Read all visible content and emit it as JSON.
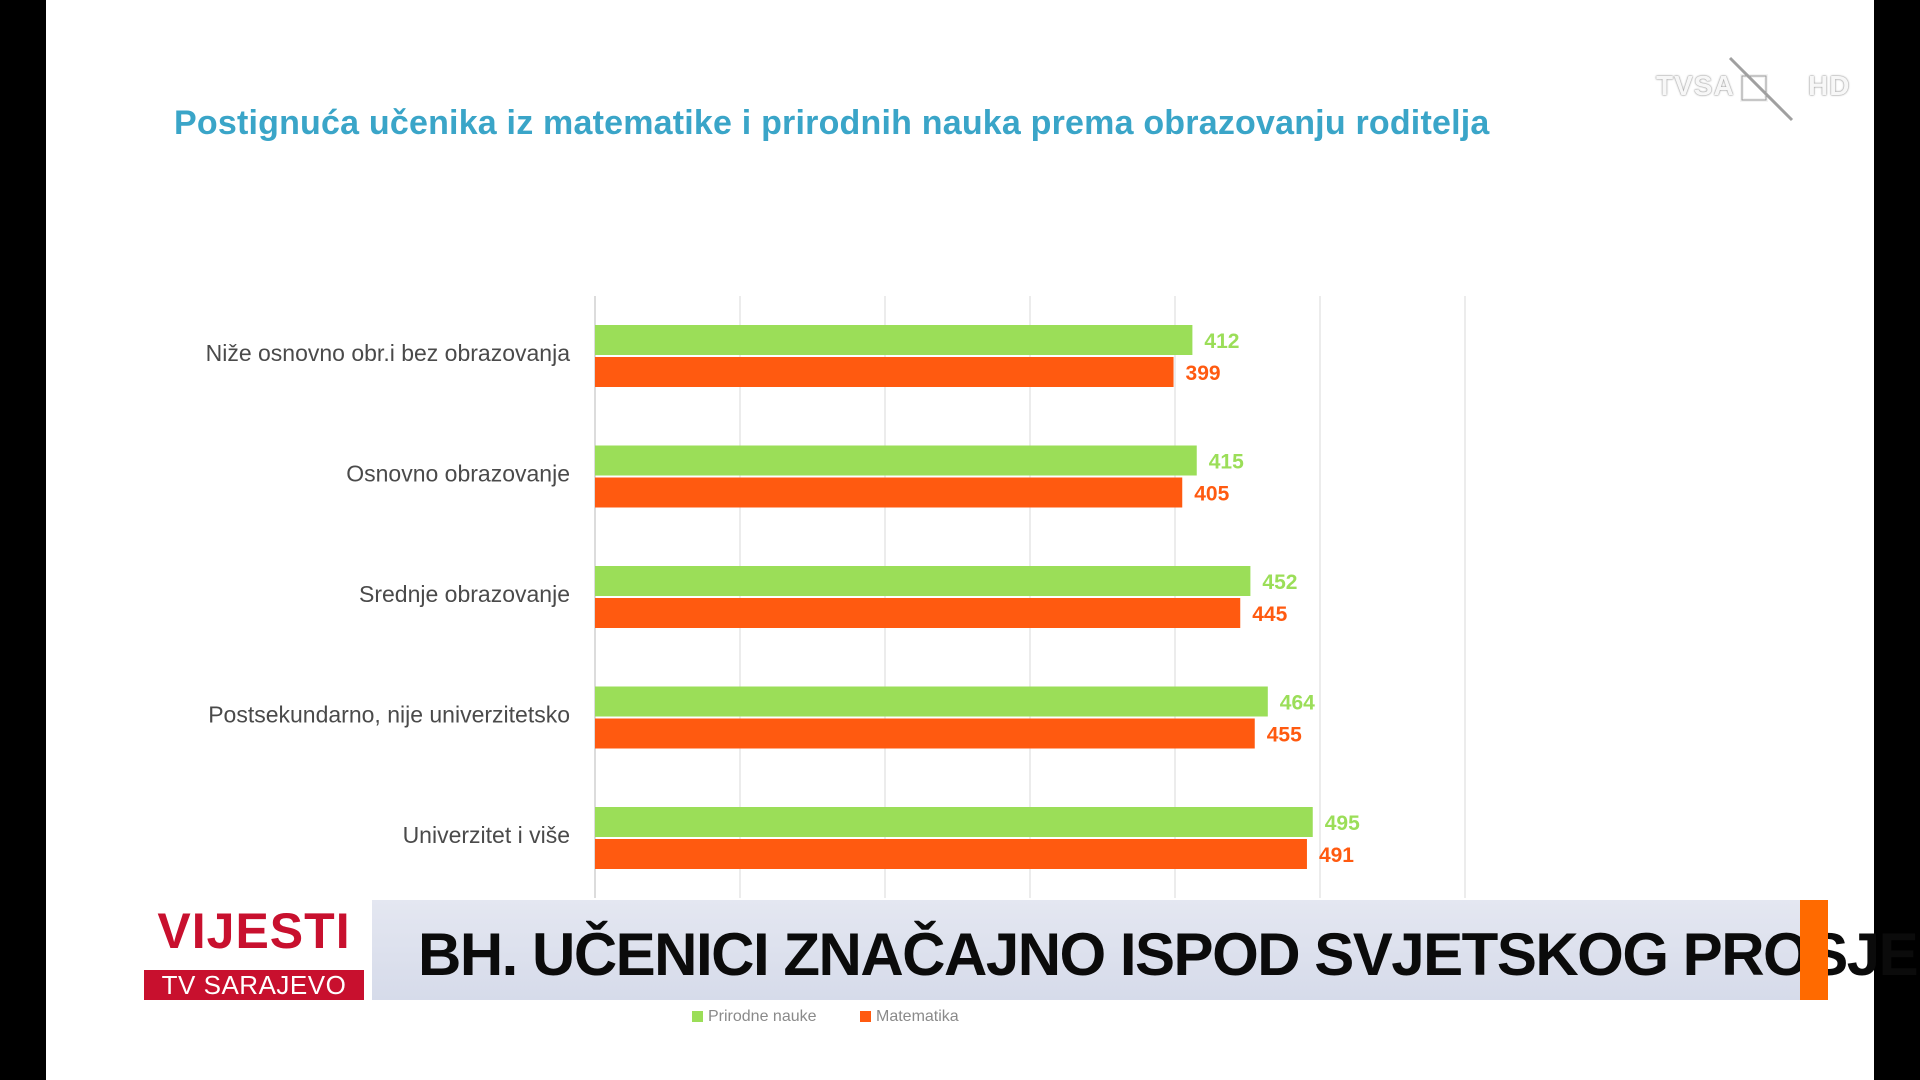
{
  "title": "Postignuća učenika iz matematike i prirodnih nauka prema obrazovanju roditelja",
  "logo": {
    "left_text": "TVSA",
    "right_text": "HD"
  },
  "news": {
    "program": "VIJESTI",
    "channel": "TV SARAJEVO",
    "headline": "BH. UČENICI ZNAČAJNO ISPOD SVJETSKOG PROSJEKA"
  },
  "colors": {
    "science": "#9bde58",
    "math": "#ff5a10",
    "title": "#3aa5c8",
    "accent": "#ff6a00",
    "brand_red": "#c8102e"
  },
  "chart_data": {
    "type": "bar",
    "orientation": "horizontal",
    "categories": [
      "Niže osnovno obr.i bez obrazovanja",
      "Osnovno obrazovanje",
      "Srednje obrazovanje",
      "Postsekundarno, nije univerzitetsko",
      "Univerzitet i više"
    ],
    "series": [
      {
        "name": "Prirodne nauke",
        "values": [
          412,
          415,
          452,
          464,
          495
        ]
      },
      {
        "name": "Matematika",
        "values": [
          399,
          405,
          445,
          455,
          491
        ]
      }
    ],
    "xlim": [
      0,
      600
    ],
    "grid": true,
    "legend": "bottom"
  }
}
